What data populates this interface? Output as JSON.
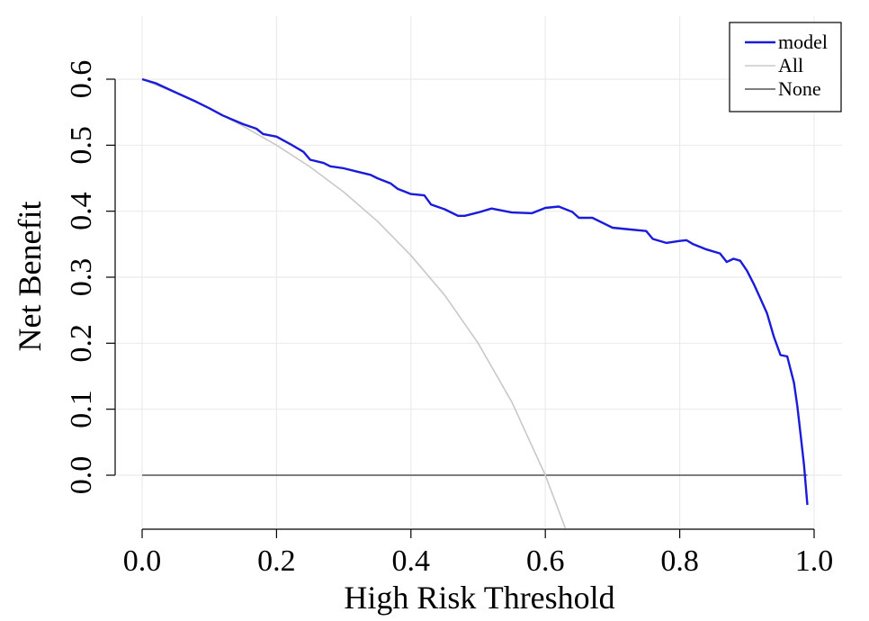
{
  "chart_data": {
    "type": "line",
    "xlabel": "High Risk Threshold",
    "ylabel": "Net Benefit",
    "xlim": [
      0,
      1.0
    ],
    "ylim": [
      -0.08,
      0.6
    ],
    "x_ticks": [
      "0.0",
      "0.2",
      "0.4",
      "0.6",
      "0.8",
      "1.0"
    ],
    "y_ticks": [
      "0.0",
      "0.1",
      "0.2",
      "0.3",
      "0.4",
      "0.5",
      "0.6"
    ],
    "grid": true,
    "legend_position": "top-right",
    "series": [
      {
        "name": "model",
        "color": "#1a1adb",
        "x": [
          0.0,
          0.02,
          0.05,
          0.08,
          0.1,
          0.12,
          0.15,
          0.17,
          0.18,
          0.2,
          0.22,
          0.24,
          0.25,
          0.27,
          0.28,
          0.3,
          0.32,
          0.34,
          0.35,
          0.37,
          0.38,
          0.4,
          0.42,
          0.43,
          0.45,
          0.47,
          0.48,
          0.5,
          0.52,
          0.55,
          0.58,
          0.6,
          0.62,
          0.64,
          0.65,
          0.67,
          0.69,
          0.7,
          0.72,
          0.75,
          0.76,
          0.78,
          0.8,
          0.81,
          0.82,
          0.84,
          0.86,
          0.87,
          0.88,
          0.89,
          0.9,
          0.91,
          0.92,
          0.93,
          0.94,
          0.95,
          0.96,
          0.97,
          0.975,
          0.98,
          0.985,
          0.99
        ],
        "values": [
          0.6,
          0.594,
          0.58,
          0.566,
          0.556,
          0.545,
          0.532,
          0.525,
          0.517,
          0.513,
          0.502,
          0.49,
          0.478,
          0.473,
          0.468,
          0.465,
          0.46,
          0.455,
          0.45,
          0.442,
          0.434,
          0.426,
          0.424,
          0.41,
          0.403,
          0.393,
          0.393,
          0.398,
          0.404,
          0.398,
          0.397,
          0.405,
          0.407,
          0.399,
          0.39,
          0.39,
          0.38,
          0.375,
          0.373,
          0.37,
          0.358,
          0.352,
          0.355,
          0.356,
          0.35,
          0.342,
          0.336,
          0.323,
          0.328,
          0.325,
          0.31,
          0.29,
          0.268,
          0.245,
          0.21,
          0.182,
          0.18,
          0.14,
          0.105,
          0.06,
          0.015,
          -0.045
        ]
      },
      {
        "name": "All",
        "color": "#c8c8c8",
        "x": [
          0.0,
          0.05,
          0.1,
          0.15,
          0.2,
          0.25,
          0.3,
          0.35,
          0.4,
          0.45,
          0.5,
          0.55,
          0.6,
          0.63
        ],
        "values": [
          0.6,
          0.579,
          0.556,
          0.529,
          0.5,
          0.467,
          0.429,
          0.385,
          0.333,
          0.273,
          0.2,
          0.111,
          0.0,
          -0.081
        ]
      },
      {
        "name": "None",
        "color": "#555555",
        "x": [
          0.0,
          0.99
        ],
        "values": [
          0.0,
          0.0
        ]
      }
    ]
  }
}
